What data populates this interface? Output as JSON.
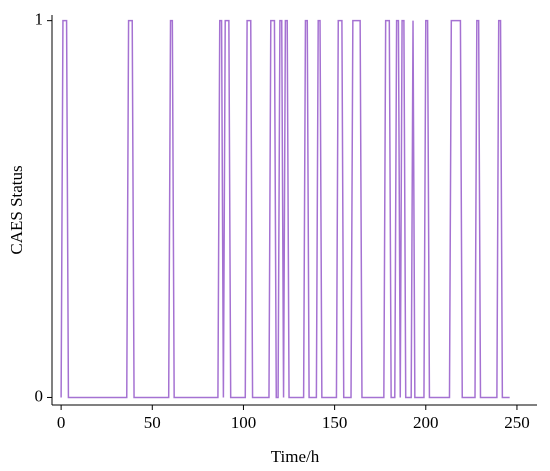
{
  "chart_data": {
    "type": "line",
    "xlabel": "Time/h",
    "ylabel": "CAES Status",
    "x": [
      0,
      1,
      3,
      4,
      36,
      37,
      39,
      40,
      59,
      60,
      61,
      62,
      86,
      87,
      88,
      89,
      90,
      92,
      93,
      101,
      102,
      104,
      105,
      114,
      115,
      117,
      118,
      119,
      120,
      121,
      122,
      123,
      124,
      125,
      133,
      134,
      135,
      136,
      140,
      141,
      142,
      143,
      151,
      152,
      154,
      155,
      159,
      160,
      164,
      165,
      177,
      178,
      180,
      181,
      183,
      184,
      185,
      186,
      187,
      188,
      189,
      192,
      193,
      194,
      199,
      200,
      201,
      202,
      213,
      214,
      219,
      220,
      227,
      228,
      229,
      230,
      239,
      240,
      241,
      242,
      246
    ],
    "series": [
      {
        "color": "#a572d2",
        "values": [
          0,
          1,
          1,
          0,
          0,
          1,
          1,
          0,
          0,
          1,
          1,
          0,
          0,
          1,
          1,
          0,
          1,
          1,
          0,
          0,
          1,
          1,
          0,
          0,
          1,
          1,
          0,
          0,
          1,
          1,
          0,
          1,
          1,
          0,
          0,
          1,
          1,
          0,
          0,
          1,
          1,
          0,
          0,
          1,
          1,
          0,
          0,
          1,
          1,
          0,
          0,
          1,
          1,
          0,
          0,
          1,
          1,
          0,
          1,
          1,
          0,
          0,
          1,
          0,
          0,
          1,
          1,
          0,
          0,
          1,
          1,
          0,
          0,
          1,
          1,
          0,
          0,
          1,
          1,
          0,
          0
        ]
      }
    ],
    "xlim": [
      -5,
      261
    ],
    "xticks": [
      0,
      50,
      100,
      150,
      200,
      250
    ],
    "ylim": [
      -0.02,
      1.015
    ],
    "yticks": [
      0,
      1
    ]
  }
}
